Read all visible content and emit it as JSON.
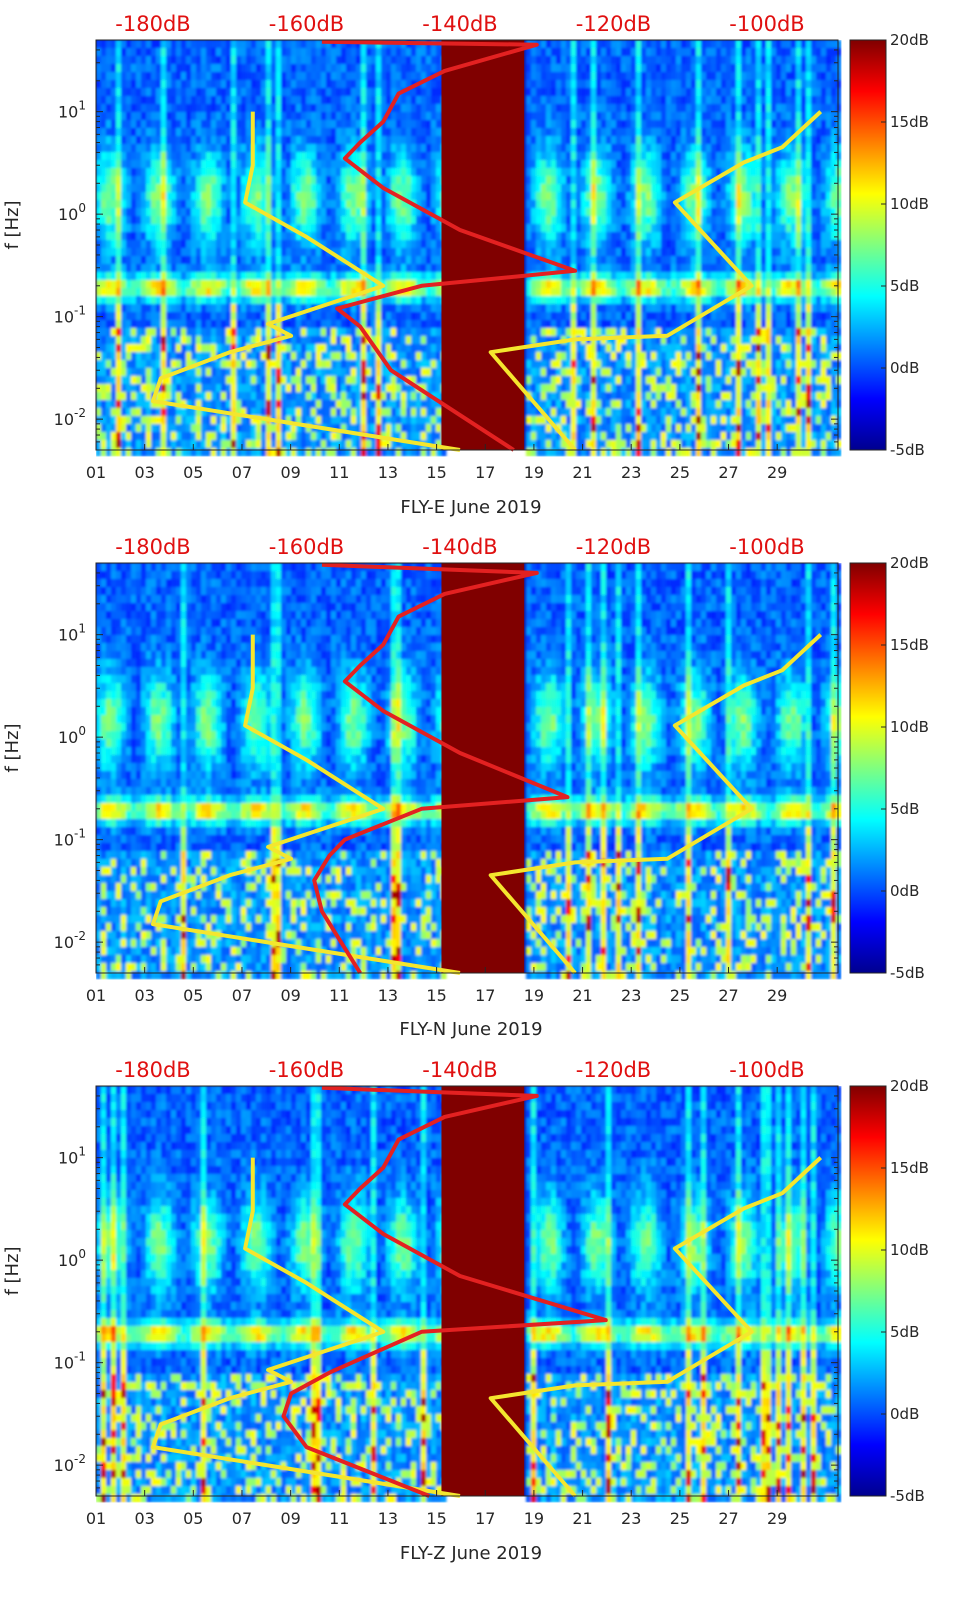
{
  "chart_data": [
    {
      "type": "heatmap",
      "title": "",
      "xlabel": "FLY-E June 2019",
      "ylabel": "f [Hz]",
      "x_tick_labels": [
        "01",
        "03",
        "05",
        "07",
        "09",
        "11",
        "13",
        "15",
        "17",
        "19",
        "21",
        "23",
        "25",
        "27",
        "29"
      ],
      "x_ticks_day": [
        1,
        3,
        5,
        7,
        9,
        11,
        13,
        15,
        17,
        19,
        21,
        23,
        25,
        27,
        29
      ],
      "xlim_day": [
        1,
        31.5
      ],
      "ylim_hz": [
        0.005,
        50
      ],
      "y_tick_labels": [
        "10^-2",
        "10^-1",
        "10^0",
        "10^1"
      ],
      "y_ticks_hz": [
        0.01,
        0.1,
        1,
        10
      ],
      "top_axis_labels": [
        "-180dB",
        "-160dB",
        "-140dB",
        "-120dB",
        "-100dB"
      ],
      "top_axis_db": [
        -180,
        -160,
        -140,
        -120,
        -100
      ],
      "colorbar_labels": [
        "20dB",
        "15dB",
        "10dB",
        "5dB",
        "0dB",
        "-5dB"
      ],
      "colorbar_range_db": [
        -5,
        20
      ],
      "data_gap_days": [
        15.2,
        18.6
      ],
      "series": [
        {
          "name": "yellow model curve (dB)",
          "color": "#f4e62e",
          "points": [
            [
              -140,
              0.005
            ],
            [
              -180,
              0.015
            ],
            [
              -179,
              0.025
            ],
            [
              -170,
              0.045
            ],
            [
              -162,
              0.065
            ],
            [
              -165,
              0.085
            ],
            [
              -150,
              0.2
            ],
            [
              -160,
              0.6
            ],
            [
              -168,
              1.3
            ],
            [
              -167,
              3.0
            ],
            [
              -167,
              10
            ]
          ]
        },
        {
          "name": "yellow model curve 2 (dB)",
          "color": "#f4e62e",
          "points": [
            [
              -125,
              0.005
            ],
            [
              -136,
              0.045
            ],
            [
              -125,
              0.06
            ],
            [
              -113,
              0.065
            ],
            [
              -102,
              0.2
            ],
            [
              -112,
              1.3
            ],
            [
              -103,
              3.2
            ],
            [
              -98,
              4.5
            ],
            [
              -93,
              10
            ]
          ]
        },
        {
          "name": "red noise floor (dB)",
          "color": "#e32121",
          "points": [
            [
              -133,
              0.005
            ],
            [
              -149,
              0.03
            ],
            [
              -153,
              0.08
            ],
            [
              -156,
              0.12
            ],
            [
              -145,
              0.2
            ],
            [
              -125,
              0.28
            ],
            [
              -140,
              0.7
            ],
            [
              -150,
              1.8
            ],
            [
              -155,
              3.5
            ],
            [
              -153,
              5
            ],
            [
              -150,
              8
            ],
            [
              -148,
              15
            ],
            [
              -142,
              25
            ],
            [
              -130,
              45
            ],
            [
              -158,
              48
            ]
          ]
        }
      ]
    },
    {
      "type": "heatmap",
      "title": "",
      "xlabel": "FLY-N June 2019",
      "ylabel": "f [Hz]",
      "x_tick_labels": [
        "01",
        "03",
        "05",
        "07",
        "09",
        "11",
        "13",
        "15",
        "17",
        "19",
        "21",
        "23",
        "25",
        "27",
        "29"
      ],
      "x_ticks_day": [
        1,
        3,
        5,
        7,
        9,
        11,
        13,
        15,
        17,
        19,
        21,
        23,
        25,
        27,
        29
      ],
      "xlim_day": [
        1,
        31.5
      ],
      "ylim_hz": [
        0.005,
        50
      ],
      "y_tick_labels": [
        "10^-2",
        "10^-1",
        "10^0",
        "10^1"
      ],
      "y_ticks_hz": [
        0.01,
        0.1,
        1,
        10
      ],
      "top_axis_labels": [
        "-180dB",
        "-160dB",
        "-140dB",
        "-120dB",
        "-100dB"
      ],
      "top_axis_db": [
        -180,
        -160,
        -140,
        -120,
        -100
      ],
      "colorbar_labels": [
        "20dB",
        "15dB",
        "10dB",
        "5dB",
        "0dB",
        "-5dB"
      ],
      "colorbar_range_db": [
        -5,
        20
      ],
      "data_gap_days": [
        15.2,
        18.6
      ],
      "series": [
        {
          "name": "yellow model curve (dB)",
          "color": "#f4e62e",
          "points": [
            [
              -140,
              0.005
            ],
            [
              -180,
              0.015
            ],
            [
              -179,
              0.025
            ],
            [
              -170,
              0.045
            ],
            [
              -162,
              0.065
            ],
            [
              -165,
              0.085
            ],
            [
              -150,
              0.2
            ],
            [
              -160,
              0.6
            ],
            [
              -168,
              1.3
            ],
            [
              -167,
              3.0
            ],
            [
              -167,
              10
            ]
          ]
        },
        {
          "name": "yellow model curve 2 (dB)",
          "color": "#f4e62e",
          "points": [
            [
              -125,
              0.005
            ],
            [
              -136,
              0.045
            ],
            [
              -125,
              0.06
            ],
            [
              -113,
              0.065
            ],
            [
              -102,
              0.2
            ],
            [
              -112,
              1.3
            ],
            [
              -103,
              3.2
            ],
            [
              -98,
              4.5
            ],
            [
              -93,
              10
            ]
          ]
        },
        {
          "name": "red noise floor (dB)",
          "color": "#e32121",
          "points": [
            [
              -153,
              0.005
            ],
            [
              -158,
              0.02
            ],
            [
              -159,
              0.04
            ],
            [
              -157,
              0.07
            ],
            [
              -155,
              0.1
            ],
            [
              -145,
              0.2
            ],
            [
              -126,
              0.26
            ],
            [
              -140,
              0.7
            ],
            [
              -150,
              1.8
            ],
            [
              -155,
              3.5
            ],
            [
              -153,
              5
            ],
            [
              -150,
              8
            ],
            [
              -148,
              15
            ],
            [
              -142,
              25
            ],
            [
              -130,
              40
            ],
            [
              -158,
              48
            ]
          ]
        }
      ]
    },
    {
      "type": "heatmap",
      "title": "",
      "xlabel": "FLY-Z June 2019",
      "ylabel": "f [Hz]",
      "x_tick_labels": [
        "01",
        "03",
        "05",
        "07",
        "09",
        "11",
        "13",
        "15",
        "17",
        "19",
        "21",
        "23",
        "25",
        "27",
        "29"
      ],
      "x_ticks_day": [
        1,
        3,
        5,
        7,
        9,
        11,
        13,
        15,
        17,
        19,
        21,
        23,
        25,
        27,
        29
      ],
      "xlim_day": [
        1,
        31.5
      ],
      "ylim_hz": [
        0.005,
        50
      ],
      "y_tick_labels": [
        "10^-2",
        "10^-1",
        "10^0",
        "10^1"
      ],
      "y_ticks_hz": [
        0.01,
        0.1,
        1,
        10
      ],
      "top_axis_labels": [
        "-180dB",
        "-160dB",
        "-140dB",
        "-120dB",
        "-100dB"
      ],
      "top_axis_db": [
        -180,
        -160,
        -140,
        -120,
        -100
      ],
      "colorbar_labels": [
        "20dB",
        "15dB",
        "10dB",
        "5dB",
        "0dB",
        "-5dB"
      ],
      "colorbar_range_db": [
        -5,
        20
      ],
      "data_gap_days": [
        15.2,
        18.6
      ],
      "series": [
        {
          "name": "yellow model curve (dB)",
          "color": "#f4e62e",
          "points": [
            [
              -140,
              0.005
            ],
            [
              -180,
              0.015
            ],
            [
              -179,
              0.025
            ],
            [
              -170,
              0.045
            ],
            [
              -162,
              0.065
            ],
            [
              -165,
              0.085
            ],
            [
              -150,
              0.2
            ],
            [
              -160,
              0.6
            ],
            [
              -168,
              1.3
            ],
            [
              -167,
              3.0
            ],
            [
              -167,
              10
            ]
          ]
        },
        {
          "name": "yellow model curve 2 (dB)",
          "color": "#f4e62e",
          "points": [
            [
              -125,
              0.005
            ],
            [
              -136,
              0.045
            ],
            [
              -125,
              0.06
            ],
            [
              -113,
              0.065
            ],
            [
              -102,
              0.2
            ],
            [
              -112,
              1.3
            ],
            [
              -103,
              3.2
            ],
            [
              -98,
              4.5
            ],
            [
              -93,
              10
            ]
          ]
        },
        {
          "name": "red noise floor (dB)",
          "color": "#e32121",
          "points": [
            [
              -144,
              0.005
            ],
            [
              -160,
              0.015
            ],
            [
              -163,
              0.03
            ],
            [
              -162,
              0.05
            ],
            [
              -157,
              0.08
            ],
            [
              -145,
              0.2
            ],
            [
              -121,
              0.26
            ],
            [
              -140,
              0.7
            ],
            [
              -150,
              1.8
            ],
            [
              -155,
              3.5
            ],
            [
              -153,
              5
            ],
            [
              -150,
              8
            ],
            [
              -148,
              15
            ],
            [
              -142,
              25
            ],
            [
              -130,
              40
            ],
            [
              -158,
              48
            ]
          ]
        }
      ]
    }
  ]
}
